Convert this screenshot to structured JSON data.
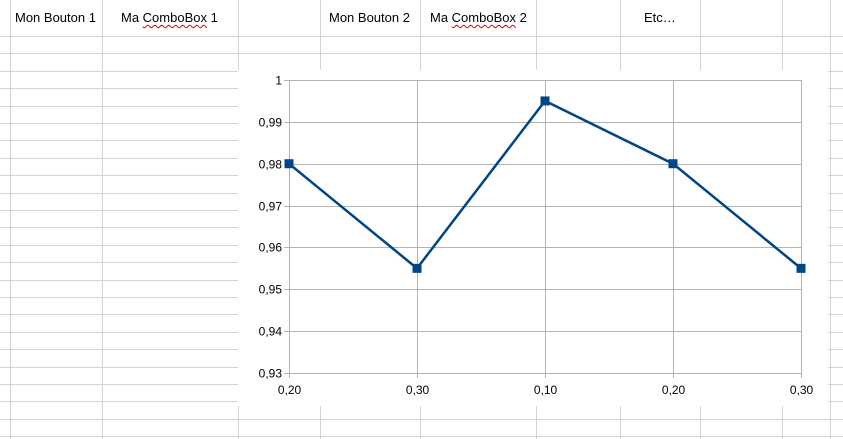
{
  "sheet": {
    "cells": [
      {
        "text": "Mon Bouton 1"
      },
      {
        "prefix": "Ma ",
        "word": "ComboBox",
        "suffix": " 1"
      },
      {
        "text": "Mon Bouton 2"
      },
      {
        "prefix": "Ma ",
        "word": "ComboBox",
        "suffix": " 2"
      },
      {
        "text": "Etc…"
      }
    ]
  },
  "chart_data": {
    "type": "line",
    "categories": [
      "0,20",
      "0,30",
      "0,10",
      "0,20",
      "0,30"
    ],
    "series": [
      {
        "values": [
          0.98,
          0.955,
          0.995,
          0.98,
          0.955
        ],
        "color": "#004586",
        "marker": "square"
      }
    ],
    "ylim": [
      0.93,
      1
    ],
    "yticks": [
      "0,93",
      "0,94",
      "0,95",
      "0,96",
      "0,97",
      "0,98",
      "0,99",
      "1"
    ],
    "grid": true,
    "legend": "none"
  }
}
